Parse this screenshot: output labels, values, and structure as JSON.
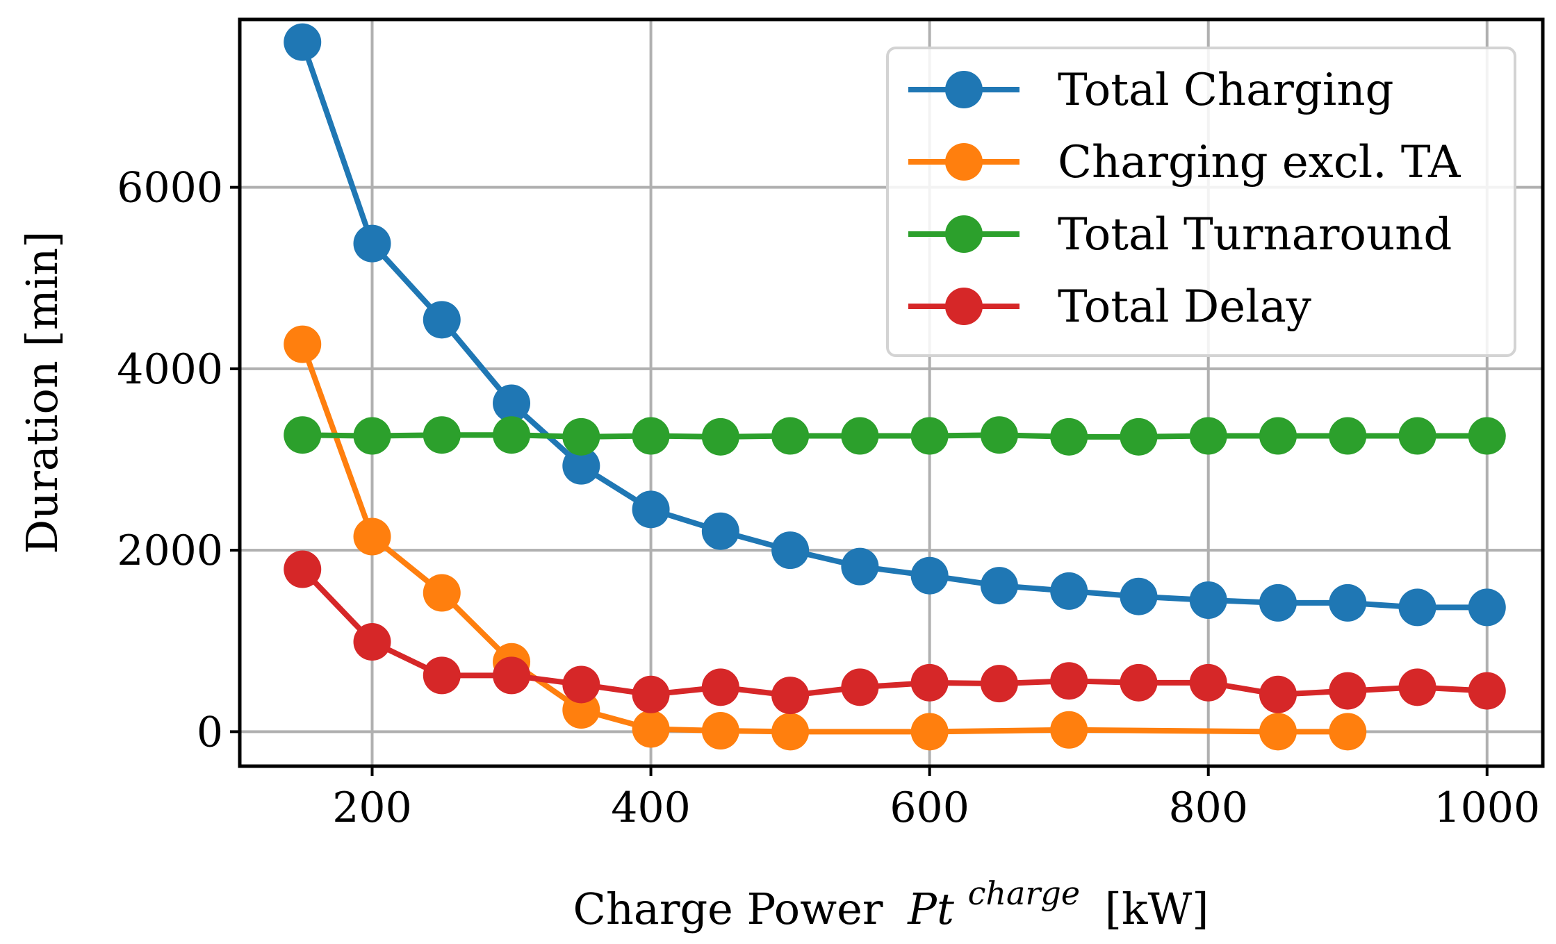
{
  "chart_data": {
    "type": "line",
    "title": "",
    "xlabel": "Charge Power",
    "xlabel_math_base": "Pt",
    "xlabel_math_sup": "charge",
    "xlabel_unit": "[kW]",
    "ylabel": "Duration [min]",
    "xlim": [
      105,
      1040
    ],
    "ylim": [
      -380,
      7850
    ],
    "xticks": [
      200,
      400,
      600,
      800,
      1000
    ],
    "yticks": [
      0,
      2000,
      4000,
      6000
    ],
    "xtick_labels": [
      "200",
      "400",
      "600",
      "800",
      "1000"
    ],
    "ytick_labels": [
      "0",
      "2000",
      "4000",
      "6000"
    ],
    "grid": true,
    "legend_position": "upper right",
    "series": [
      {
        "name": "Total Charging",
        "color": "#1f77b4",
        "x": [
          150,
          200,
          250,
          300,
          350,
          400,
          450,
          500,
          550,
          600,
          650,
          700,
          750,
          800,
          850,
          900,
          950,
          1000
        ],
        "y": [
          7600,
          5380,
          4540,
          3620,
          2930,
          2450,
          2210,
          2000,
          1820,
          1720,
          1610,
          1550,
          1490,
          1450,
          1420,
          1420,
          1370,
          1370
        ]
      },
      {
        "name": "Charging excl. TA",
        "color": "#ff7f0e",
        "x": [
          150,
          200,
          250,
          300,
          350,
          400,
          450,
          500,
          600,
          700,
          850,
          900
        ],
        "y": [
          4270,
          2150,
          1530,
          770,
          240,
          30,
          10,
          0,
          0,
          20,
          0,
          0
        ]
      },
      {
        "name": "Total Turnaround",
        "color": "#2ca02c",
        "x": [
          150,
          200,
          250,
          300,
          350,
          400,
          450,
          500,
          550,
          600,
          650,
          700,
          750,
          800,
          850,
          900,
          950,
          1000
        ],
        "y": [
          3270,
          3260,
          3270,
          3270,
          3250,
          3260,
          3250,
          3260,
          3260,
          3260,
          3270,
          3250,
          3250,
          3260,
          3260,
          3260,
          3260,
          3260
        ]
      },
      {
        "name": "Total Delay",
        "color": "#d62728",
        "x": [
          150,
          200,
          250,
          300,
          350,
          400,
          450,
          500,
          550,
          600,
          650,
          700,
          750,
          800,
          850,
          900,
          950,
          1000
        ],
        "y": [
          1790,
          990,
          620,
          620,
          520,
          410,
          490,
          400,
          490,
          540,
          530,
          560,
          540,
          540,
          410,
          450,
          490,
          450
        ]
      }
    ]
  }
}
